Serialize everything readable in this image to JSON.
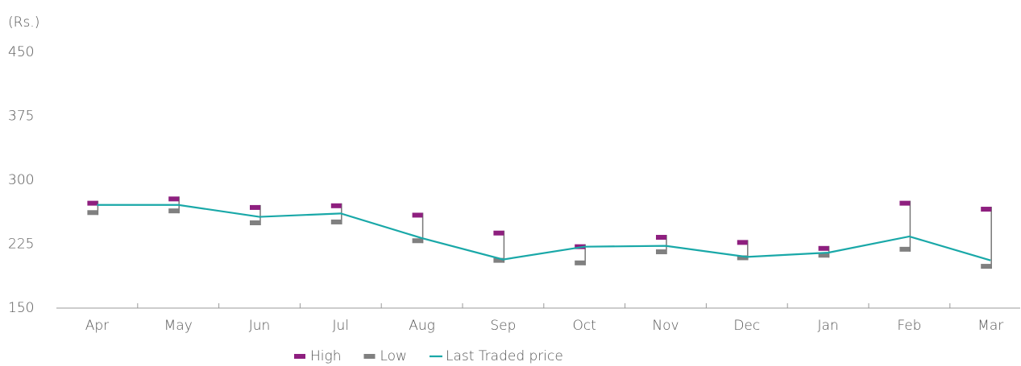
{
  "chart_data": {
    "type": "stock",
    "y_label": "(Rs.)",
    "categories": [
      "Apr",
      "May",
      "Jun",
      "Jul",
      "Aug",
      "Sep",
      "Oct",
      "Nov",
      "Dec",
      "Jan",
      "Feb",
      "Mar"
    ],
    "series": [
      {
        "name": "High",
        "color": "#8e1f7f",
        "mark": "flag",
        "values": [
          273,
          278,
          268,
          270,
          259,
          238,
          222,
          233,
          227,
          220,
          273,
          266
        ]
      },
      {
        "name": "Low",
        "color": "#808080",
        "mark": "flag",
        "values": [
          262,
          264,
          250,
          251,
          229,
          206,
          203,
          216,
          209,
          212,
          219,
          199
        ]
      },
      {
        "name": "Last Traded price",
        "color": "#19a8a8",
        "mark": "line",
        "values": [
          271,
          271,
          257,
          261,
          232,
          207,
          222,
          223,
          210,
          215,
          234,
          206
        ]
      }
    ],
    "ylim": [
      150,
      450
    ],
    "yticks": [
      150,
      225,
      300,
      375,
      450
    ],
    "grid": false,
    "legend": "bottom"
  }
}
